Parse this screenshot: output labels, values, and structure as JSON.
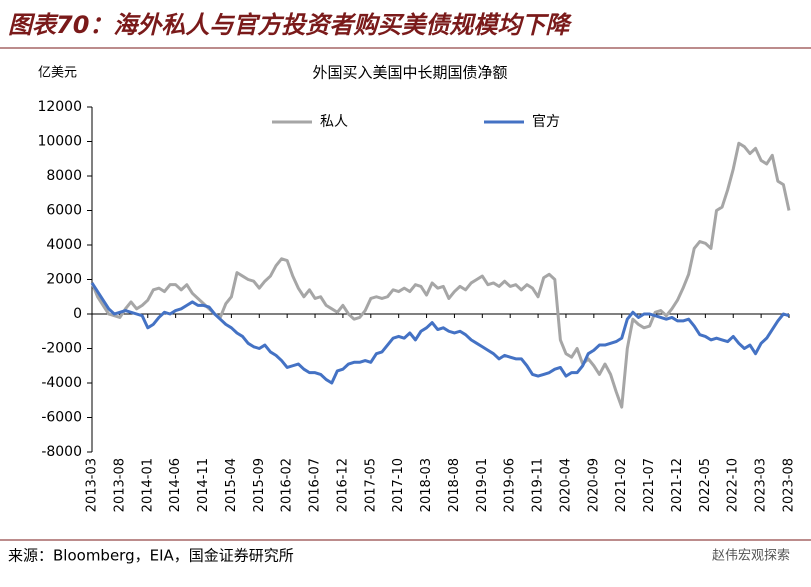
{
  "title": "图表70：海外私人与官方投资者购买美债规模均下降",
  "source": "来源：Bloomberg，EIA，国金证券研究所",
  "watermark": "赵伟宏观探索",
  "chart_data": {
    "type": "line",
    "title": "外国买入美国中长期国债净额",
    "y_label": "亿美元",
    "categories": [
      "2013-03",
      null,
      null,
      null,
      null,
      "2013-08",
      null,
      null,
      null,
      null,
      "2014-01",
      null,
      null,
      null,
      null,
      "2014-06",
      null,
      null,
      null,
      null,
      "2014-11",
      null,
      null,
      null,
      null,
      "2015-04",
      null,
      null,
      null,
      null,
      "2015-09",
      null,
      null,
      null,
      null,
      "2016-02",
      null,
      null,
      null,
      null,
      "2016-07",
      null,
      null,
      null,
      null,
      "2016-12",
      null,
      null,
      null,
      null,
      "2017-05",
      null,
      null,
      null,
      null,
      "2017-10",
      null,
      null,
      null,
      null,
      "2018-03",
      null,
      null,
      null,
      null,
      "2018-08",
      null,
      null,
      null,
      null,
      "2019-01",
      null,
      null,
      null,
      null,
      "2019-06",
      null,
      null,
      null,
      null,
      "2019-11",
      null,
      null,
      null,
      null,
      "2020-04",
      null,
      null,
      null,
      null,
      "2020-09",
      null,
      null,
      null,
      null,
      "2021-02",
      null,
      null,
      null,
      null,
      "2021-07",
      null,
      null,
      null,
      null,
      "2021-12",
      null,
      null,
      null,
      null,
      "2022-05",
      null,
      null,
      null,
      null,
      "2022-10",
      null,
      null,
      null,
      null,
      "2023-03",
      null,
      null,
      null,
      null,
      "2023-08"
    ],
    "series": [
      {
        "name": "私人",
        "color": "#a6a6a6",
        "values": [
          1800,
          1000,
          500,
          0,
          -100,
          -200,
          300,
          700,
          300,
          500,
          800,
          1400,
          1500,
          1300,
          1700,
          1700,
          1400,
          1700,
          1200,
          900,
          600,
          300,
          0,
          -200,
          600,
          1000,
          2400,
          2200,
          2000,
          1900,
          1500,
          1900,
          2200,
          2800,
          3200,
          3100,
          2200,
          1500,
          1000,
          1400,
          900,
          1000,
          500,
          300,
          100,
          500,
          0,
          -300,
          -200,
          200,
          900,
          1000,
          900,
          1000,
          1400,
          1300,
          1500,
          1300,
          1700,
          1600,
          1100,
          1800,
          1500,
          1600,
          900,
          1300,
          1600,
          1400,
          1800,
          2000,
          2200,
          1700,
          1800,
          1600,
          1900,
          1600,
          1700,
          1400,
          1700,
          1500,
          1000,
          2100,
          2300,
          2000,
          -1500,
          -2300,
          -2500,
          -2000,
          -2900,
          -2600,
          -3000,
          -3500,
          -2900,
          -3500,
          -4500,
          -5400,
          -2000,
          -300,
          -600,
          -800,
          -700,
          100,
          200,
          -100,
          300,
          800,
          1500,
          2300,
          3800,
          4200,
          4100,
          3800,
          6000,
          6200,
          7200,
          8400,
          9900,
          9700,
          9300,
          9600,
          8900,
          8700,
          9200,
          7700,
          7500,
          6000
        ]
      },
      {
        "name": "官方",
        "color": "#4472c4",
        "values": [
          1800,
          1300,
          800,
          300,
          0,
          100,
          200,
          100,
          0,
          -100,
          -800,
          -600,
          -200,
          100,
          0,
          200,
          300,
          500,
          700,
          500,
          500,
          400,
          0,
          -300,
          -600,
          -800,
          -1100,
          -1300,
          -1700,
          -1900,
          -2000,
          -1800,
          -2200,
          -2400,
          -2700,
          -3100,
          -3000,
          -2900,
          -3200,
          -3400,
          -3400,
          -3500,
          -3800,
          -4000,
          -3300,
          -3200,
          -2900,
          -2800,
          -2800,
          -2700,
          -2800,
          -2300,
          -2200,
          -1800,
          -1400,
          -1300,
          -1400,
          -1100,
          -1500,
          -1000,
          -800,
          -500,
          -900,
          -800,
          -1000,
          -1100,
          -1000,
          -1200,
          -1500,
          -1700,
          -1900,
          -2100,
          -2300,
          -2600,
          -2400,
          -2500,
          -2600,
          -2600,
          -3000,
          -3500,
          -3600,
          -3500,
          -3400,
          -3200,
          -3100,
          -3600,
          -3400,
          -3400,
          -3000,
          -2300,
          -2100,
          -1800,
          -1800,
          -1700,
          -1600,
          -1400,
          -300,
          100,
          -200,
          0,
          0,
          -100,
          -200,
          -300,
          -200,
          -400,
          -400,
          -300,
          -700,
          -1200,
          -1300,
          -1500,
          -1400,
          -1500,
          -1600,
          -1300,
          -1700,
          -2000,
          -1800,
          -2300,
          -1700,
          -1400,
          -900,
          -400,
          0,
          -100
        ]
      }
    ],
    "ylim": [
      -8000,
      12000
    ],
    "yticks": [
      -8000,
      -6000,
      -4000,
      -2000,
      0,
      2000,
      4000,
      6000,
      8000,
      10000,
      12000
    ],
    "grid": false
  }
}
